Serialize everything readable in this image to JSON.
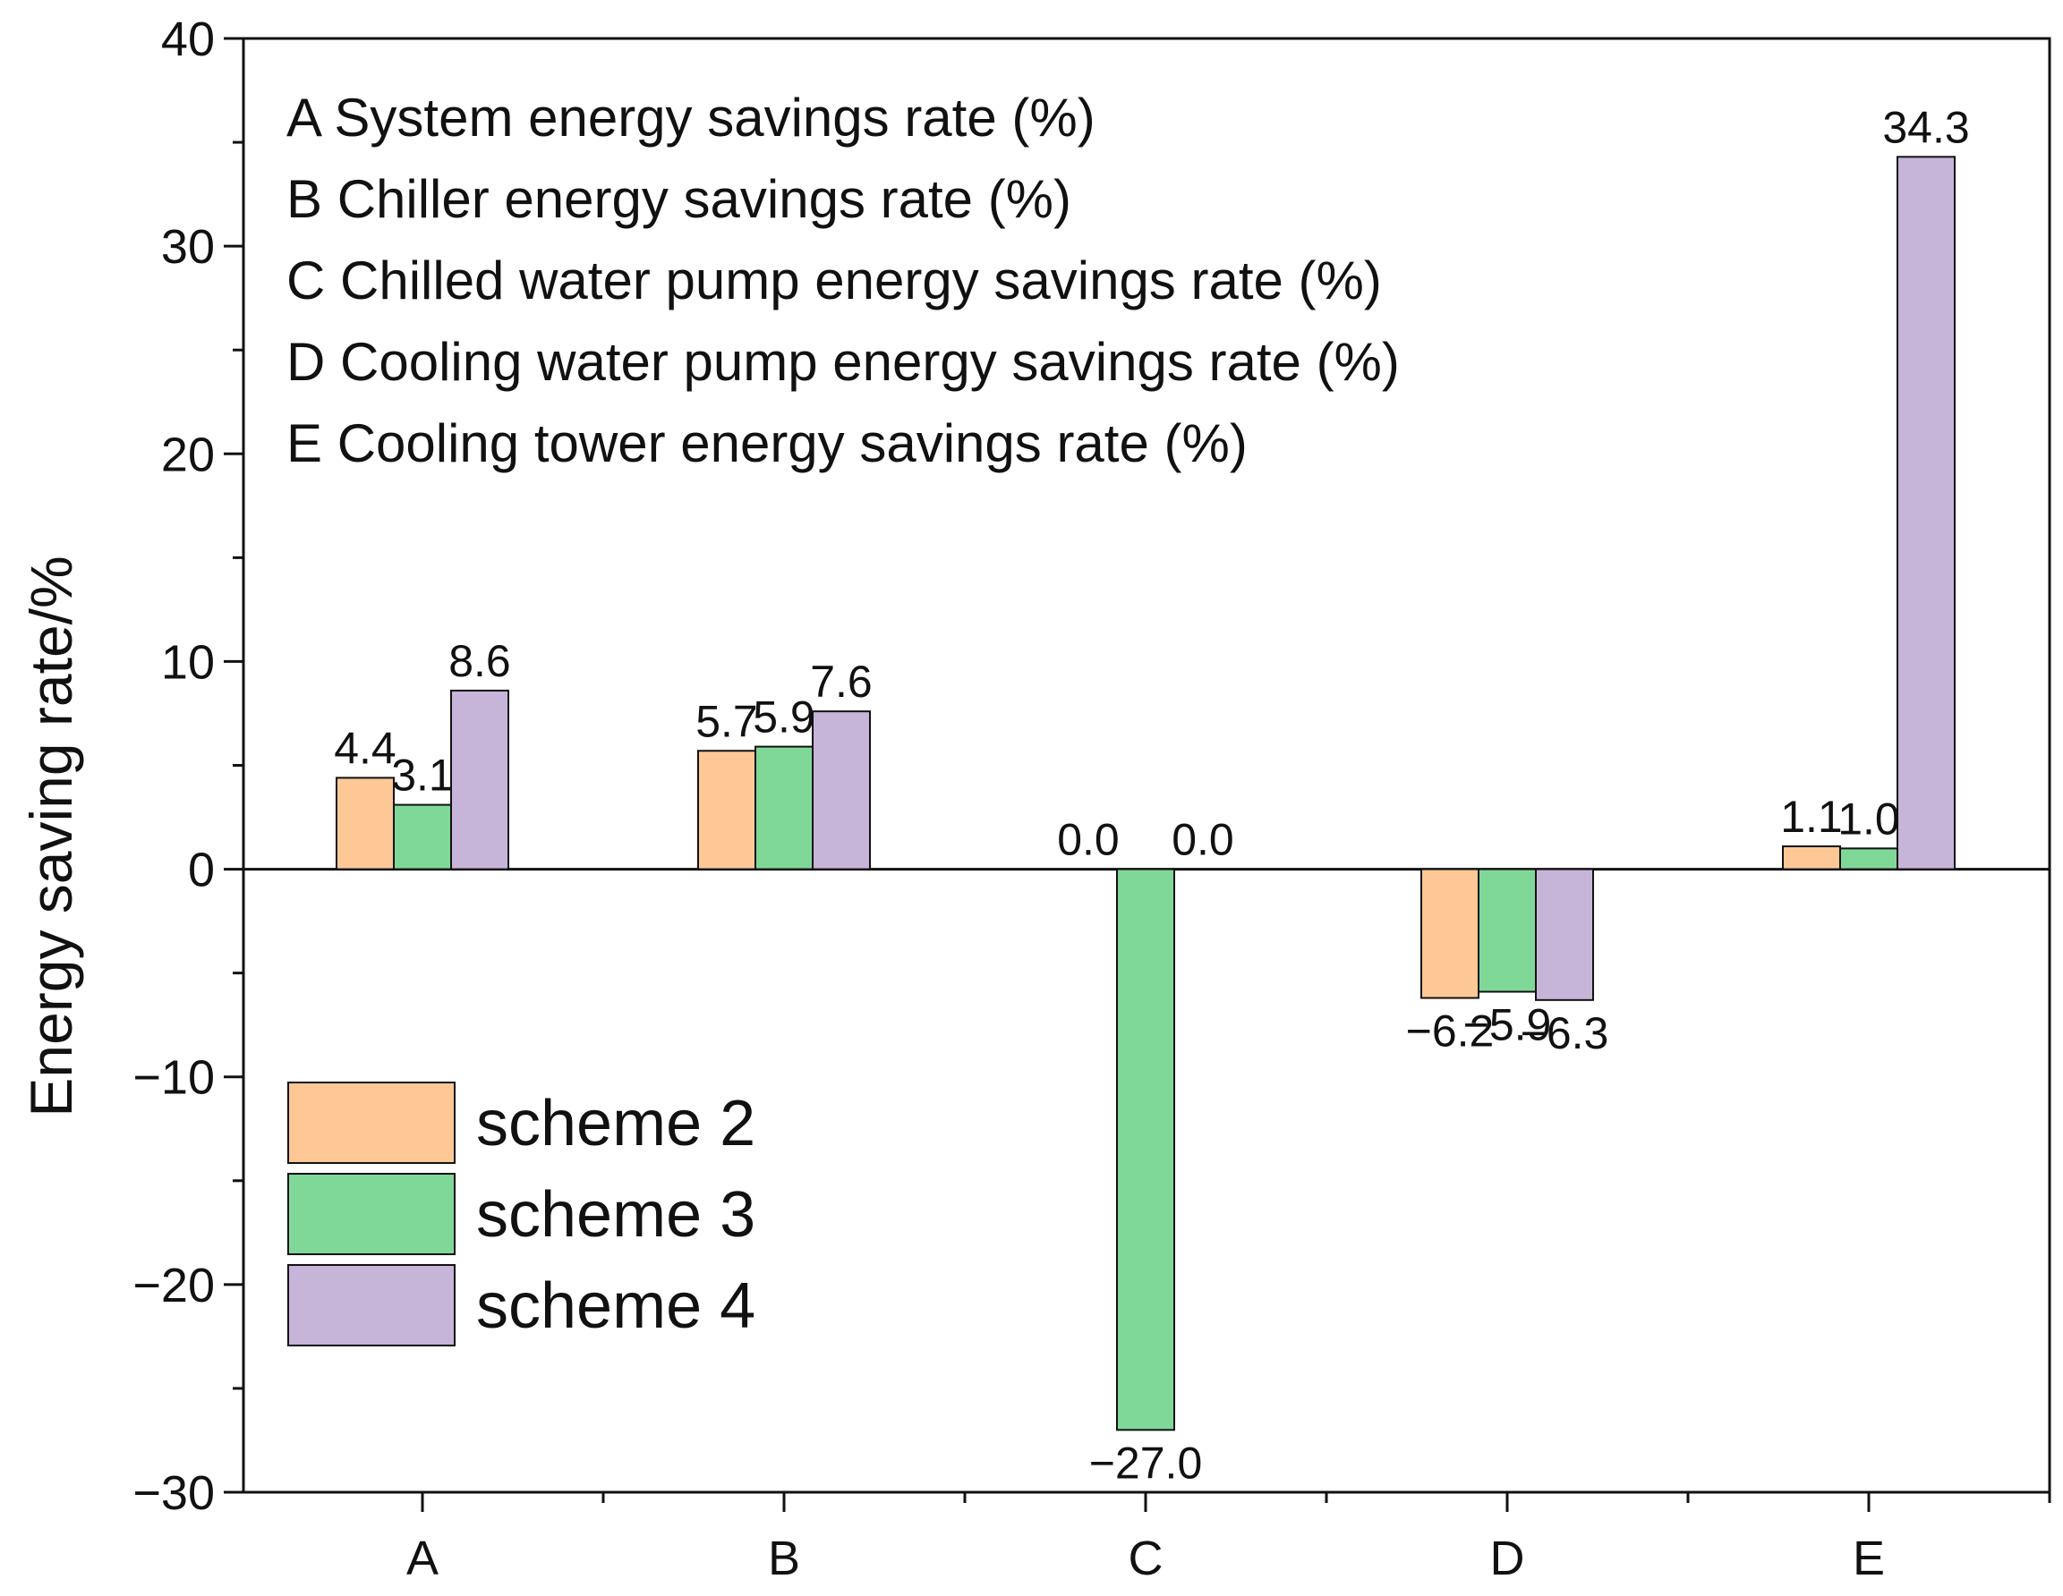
{
  "chart_data": {
    "type": "bar",
    "ylabel": "Energy saving rate/%",
    "xlabel": "",
    "categories": [
      "A",
      "B",
      "C",
      "D",
      "E"
    ],
    "ylim": [
      -30,
      40
    ],
    "yticks": [
      40,
      30,
      20,
      10,
      0,
      -10,
      -20,
      -30
    ],
    "ytick_labels": [
      "40",
      "30",
      "20",
      "10",
      "0",
      "−10",
      "−20",
      "−30"
    ],
    "series": [
      {
        "name": "scheme 2",
        "color": "#FDC895",
        "values": [
          4.4,
          5.7,
          0.0,
          -6.2,
          1.1
        ],
        "labels": [
          "4.4",
          "5.7",
          "0.0",
          "−6.2",
          "1.1"
        ]
      },
      {
        "name": "scheme 3",
        "color": "#7FD898",
        "values": [
          3.1,
          5.9,
          -27.0,
          -5.9,
          1.0
        ],
        "labels": [
          "3.1",
          "5.9",
          "−27.0",
          "−5.9",
          "1.0"
        ]
      },
      {
        "name": "scheme 4",
        "color": "#C7B4D9",
        "values": [
          8.6,
          7.6,
          0.0,
          -6.3,
          34.3
        ],
        "labels": [
          "8.6",
          "7.6",
          "0.0",
          "−6.3",
          "34.3"
        ]
      }
    ],
    "notes": [
      "A System energy savings rate (%)",
      "B Chiller energy savings rate (%)",
      "C Chilled water pump energy savings rate (%)",
      "D Cooling water pump energy savings rate (%)",
      "E Cooling tower energy savings rate (%)"
    ],
    "legend_position": "bottom-left",
    "grid": false
  }
}
